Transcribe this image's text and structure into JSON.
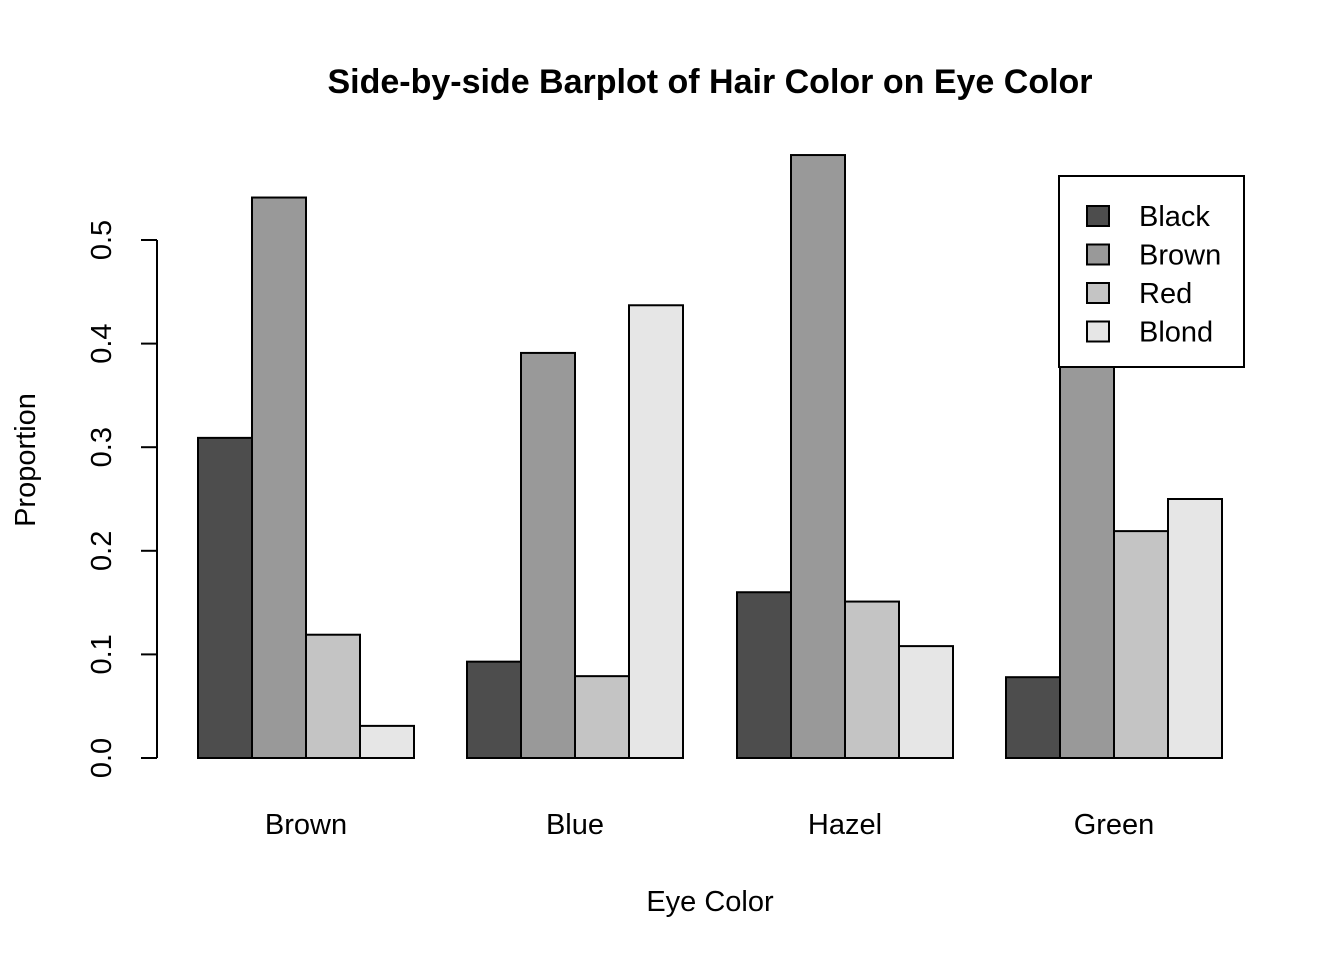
{
  "chart_data": {
    "type": "bar",
    "title": "Side-by-side Barplot of Hair Color on Eye Color",
    "xlabel": "Eye Color",
    "ylabel": "Proportion",
    "ylim": [
      0,
      0.58
    ],
    "yticks": [
      "0.0",
      "0.1",
      "0.2",
      "0.3",
      "0.4",
      "0.5"
    ],
    "categories": [
      "Brown",
      "Blue",
      "Hazel",
      "Green"
    ],
    "series": [
      {
        "name": "Black",
        "color": "#4d4d4d",
        "values": [
          0.309,
          0.093,
          0.16,
          0.078
        ]
      },
      {
        "name": "Brown",
        "color": "#999999",
        "values": [
          0.541,
          0.391,
          0.582,
          0.406
        ]
      },
      {
        "name": "Red",
        "color": "#c4c4c4",
        "values": [
          0.119,
          0.079,
          0.151,
          0.219
        ]
      },
      {
        "name": "Blond",
        "color": "#e6e6e6",
        "values": [
          0.031,
          0.437,
          0.108,
          0.25
        ]
      }
    ],
    "grid": false,
    "legend_position": "top-right"
  }
}
